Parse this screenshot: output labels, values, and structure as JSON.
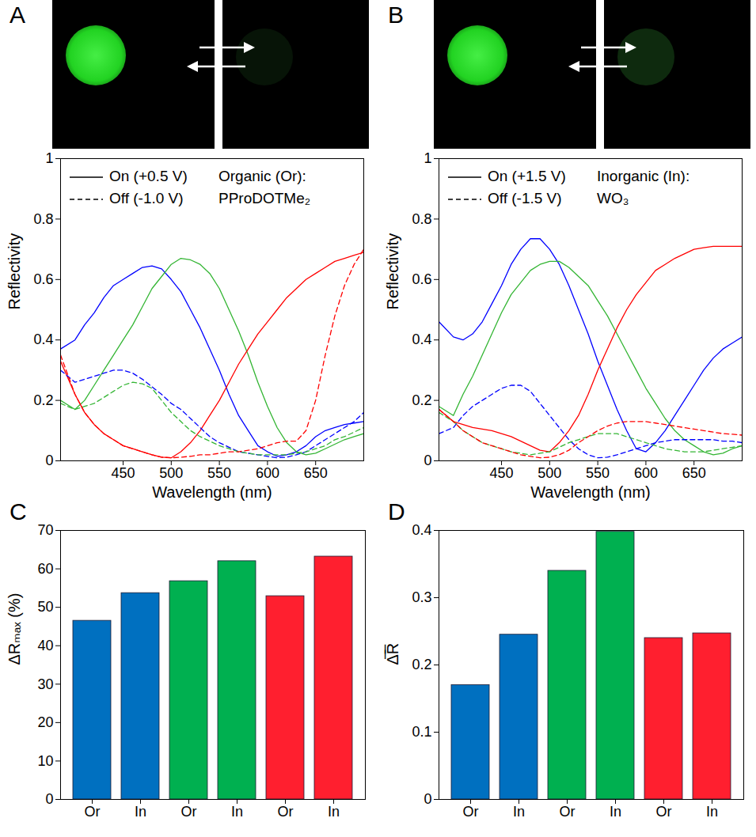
{
  "chart_data": [
    {
      "panel": "A",
      "type": "line",
      "xlabel": "Wavelength (nm)",
      "ylabel": "Reflectivity",
      "xlim": [
        385,
        700
      ],
      "xticks": [
        450,
        500,
        550,
        600,
        650
      ],
      "ylim": [
        0,
        1
      ],
      "yticks": [
        0,
        0.2,
        0.4,
        0.6,
        0.8,
        1
      ],
      "legend": "top left",
      "annotations": [
        "Organic (Or):",
        "PProDOTMe₂"
      ],
      "x": [
        385,
        400,
        410,
        420,
        430,
        440,
        450,
        460,
        470,
        480,
        490,
        500,
        510,
        520,
        530,
        540,
        550,
        560,
        570,
        580,
        590,
        600,
        610,
        620,
        630,
        640,
        650,
        660,
        670,
        680,
        690,
        700
      ],
      "series": [
        {
          "name": "On (+0.5 V)",
          "color": "#0000ff",
          "line_style": "solid",
          "values": [
            0.37,
            0.4,
            0.45,
            0.49,
            0.54,
            0.58,
            0.6,
            0.62,
            0.64,
            0.645,
            0.635,
            0.6,
            0.56,
            0.5,
            0.44,
            0.37,
            0.3,
            0.22,
            0.15,
            0.1,
            0.05,
            0.03,
            0.015,
            0.02,
            0.03,
            0.05,
            0.08,
            0.1,
            0.11,
            0.12,
            0.125,
            0.13
          ]
        },
        {
          "name": "On (+0.5 V)",
          "color": "#33b533",
          "line_style": "solid",
          "values": [
            0.2,
            0.17,
            0.2,
            0.25,
            0.3,
            0.35,
            0.4,
            0.45,
            0.51,
            0.57,
            0.61,
            0.65,
            0.67,
            0.665,
            0.65,
            0.62,
            0.57,
            0.5,
            0.43,
            0.35,
            0.26,
            0.18,
            0.11,
            0.06,
            0.03,
            0.02,
            0.025,
            0.04,
            0.055,
            0.07,
            0.08,
            0.09
          ]
        },
        {
          "name": "On (+0.5 V)",
          "color": "#ff0000",
          "line_style": "solid",
          "values": [
            0.33,
            0.22,
            0.16,
            0.12,
            0.09,
            0.07,
            0.05,
            0.04,
            0.03,
            0.02,
            0.012,
            0.01,
            0.03,
            0.06,
            0.1,
            0.15,
            0.2,
            0.26,
            0.32,
            0.37,
            0.42,
            0.46,
            0.5,
            0.54,
            0.57,
            0.6,
            0.62,
            0.64,
            0.66,
            0.67,
            0.68,
            0.69
          ]
        },
        {
          "name": "Off (-1.0 V)",
          "color": "#0000ff",
          "line_style": "dashed",
          "values": [
            0.3,
            0.26,
            0.27,
            0.28,
            0.29,
            0.3,
            0.3,
            0.29,
            0.27,
            0.245,
            0.22,
            0.19,
            0.17,
            0.14,
            0.11,
            0.08,
            0.06,
            0.045,
            0.03,
            0.025,
            0.02,
            0.015,
            0.01,
            0.012,
            0.02,
            0.03,
            0.05,
            0.07,
            0.09,
            0.11,
            0.13,
            0.16
          ]
        },
        {
          "name": "Off (-1.0 V)",
          "color": "#33b533",
          "line_style": "dashed",
          "values": [
            0.19,
            0.17,
            0.18,
            0.19,
            0.21,
            0.23,
            0.25,
            0.26,
            0.255,
            0.24,
            0.2,
            0.16,
            0.13,
            0.1,
            0.08,
            0.065,
            0.05,
            0.04,
            0.03,
            0.025,
            0.02,
            0.02,
            0.02,
            0.02,
            0.025,
            0.03,
            0.04,
            0.05,
            0.07,
            0.08,
            0.095,
            0.11
          ]
        },
        {
          "name": "Off (-1.0 V)",
          "color": "#ff0000",
          "line_style": "dashed",
          "values": [
            0.35,
            0.22,
            0.16,
            0.12,
            0.09,
            0.07,
            0.05,
            0.04,
            0.03,
            0.02,
            0.012,
            0.01,
            0.012,
            0.015,
            0.02,
            0.02,
            0.025,
            0.03,
            0.03,
            0.035,
            0.04,
            0.05,
            0.06,
            0.065,
            0.065,
            0.1,
            0.2,
            0.35,
            0.48,
            0.58,
            0.65,
            0.7
          ]
        }
      ]
    },
    {
      "panel": "B",
      "type": "line",
      "xlabel": "Wavelength (nm)",
      "ylabel": "Reflectivity",
      "xlim": [
        385,
        700
      ],
      "xticks": [
        450,
        500,
        550,
        600,
        650
      ],
      "ylim": [
        0,
        1
      ],
      "yticks": [
        0,
        0.2,
        0.4,
        0.6,
        0.8,
        1
      ],
      "legend": "top left",
      "annotations": [
        "Inorganic (In):",
        "WO₃"
      ],
      "x": [
        385,
        400,
        410,
        420,
        430,
        440,
        450,
        460,
        470,
        480,
        490,
        500,
        510,
        520,
        530,
        540,
        550,
        560,
        570,
        580,
        590,
        600,
        610,
        620,
        630,
        640,
        650,
        660,
        670,
        680,
        690,
        700
      ],
      "series": [
        {
          "name": "On (+1.5 V)",
          "color": "#0000ff",
          "line_style": "solid",
          "values": [
            0.46,
            0.41,
            0.4,
            0.42,
            0.46,
            0.52,
            0.58,
            0.65,
            0.7,
            0.735,
            0.735,
            0.7,
            0.65,
            0.58,
            0.5,
            0.42,
            0.33,
            0.25,
            0.17,
            0.1,
            0.04,
            0.03,
            0.06,
            0.1,
            0.15,
            0.2,
            0.25,
            0.3,
            0.34,
            0.37,
            0.39,
            0.41
          ]
        },
        {
          "name": "On (+1.5 V)",
          "color": "#33b533",
          "line_style": "solid",
          "values": [
            0.18,
            0.15,
            0.22,
            0.28,
            0.35,
            0.42,
            0.49,
            0.55,
            0.59,
            0.63,
            0.65,
            0.66,
            0.66,
            0.64,
            0.61,
            0.58,
            0.53,
            0.48,
            0.42,
            0.36,
            0.3,
            0.24,
            0.19,
            0.14,
            0.1,
            0.07,
            0.05,
            0.03,
            0.02,
            0.025,
            0.04,
            0.05
          ]
        },
        {
          "name": "On (+1.5 V)",
          "color": "#ff0000",
          "line_style": "solid",
          "values": [
            0.17,
            0.13,
            0.12,
            0.11,
            0.105,
            0.1,
            0.09,
            0.08,
            0.065,
            0.05,
            0.035,
            0.03,
            0.06,
            0.1,
            0.15,
            0.22,
            0.3,
            0.37,
            0.44,
            0.5,
            0.55,
            0.59,
            0.63,
            0.65,
            0.67,
            0.685,
            0.7,
            0.705,
            0.71,
            0.71,
            0.71,
            0.71
          ]
        },
        {
          "name": "Off (-1.5 V)",
          "color": "#0000ff",
          "line_style": "dashed",
          "values": [
            0.09,
            0.11,
            0.15,
            0.18,
            0.2,
            0.22,
            0.24,
            0.25,
            0.25,
            0.23,
            0.19,
            0.15,
            0.11,
            0.07,
            0.04,
            0.02,
            0.01,
            0.012,
            0.02,
            0.03,
            0.04,
            0.05,
            0.06,
            0.065,
            0.07,
            0.07,
            0.07,
            0.07,
            0.07,
            0.065,
            0.065,
            0.06
          ]
        },
        {
          "name": "Off (-1.5 V)",
          "color": "#33b533",
          "line_style": "dashed",
          "values": [
            0.16,
            0.13,
            0.1,
            0.08,
            0.06,
            0.05,
            0.04,
            0.03,
            0.025,
            0.02,
            0.025,
            0.03,
            0.045,
            0.06,
            0.07,
            0.08,
            0.09,
            0.09,
            0.09,
            0.08,
            0.07,
            0.06,
            0.05,
            0.04,
            0.035,
            0.03,
            0.03,
            0.03,
            0.035,
            0.04,
            0.045,
            0.05
          ]
        },
        {
          "name": "Off (-1.5 V)",
          "color": "#ff0000",
          "line_style": "dashed",
          "values": [
            0.17,
            0.13,
            0.1,
            0.08,
            0.06,
            0.05,
            0.04,
            0.03,
            0.02,
            0.015,
            0.01,
            0.012,
            0.02,
            0.035,
            0.06,
            0.08,
            0.1,
            0.115,
            0.125,
            0.13,
            0.13,
            0.13,
            0.125,
            0.12,
            0.115,
            0.11,
            0.105,
            0.1,
            0.095,
            0.09,
            0.088,
            0.085
          ]
        }
      ]
    },
    {
      "panel": "C",
      "type": "bar",
      "ylabel": "ΔRₘₐₓ (%)",
      "categories": [
        "Or",
        "In",
        "Or",
        "In",
        "Or",
        "In"
      ],
      "values": [
        46.5,
        53.7,
        56.8,
        62,
        52.9,
        63.2
      ],
      "colors": [
        "#0070c0",
        "#0070c0",
        "#00b050",
        "#00b050",
        "#ff1f2f",
        "#ff1f2f"
      ],
      "ylim": [
        0,
        70
      ],
      "yticks": [
        0,
        10,
        20,
        30,
        40,
        50,
        60,
        70
      ]
    },
    {
      "panel": "D",
      "type": "bar",
      "ylabel": "Δ̅R̅",
      "categories": [
        "Or",
        "In",
        "Or",
        "In",
        "Or",
        "In"
      ],
      "values": [
        0.17,
        0.245,
        0.34,
        0.398,
        0.24,
        0.247
      ],
      "colors": [
        "#0070c0",
        "#0070c0",
        "#00b050",
        "#00b050",
        "#ff1f2f",
        "#ff1f2f"
      ],
      "ylim": [
        0,
        0.4
      ],
      "yticks": [
        0,
        0.1,
        0.2,
        0.3,
        0.4
      ]
    }
  ]
}
